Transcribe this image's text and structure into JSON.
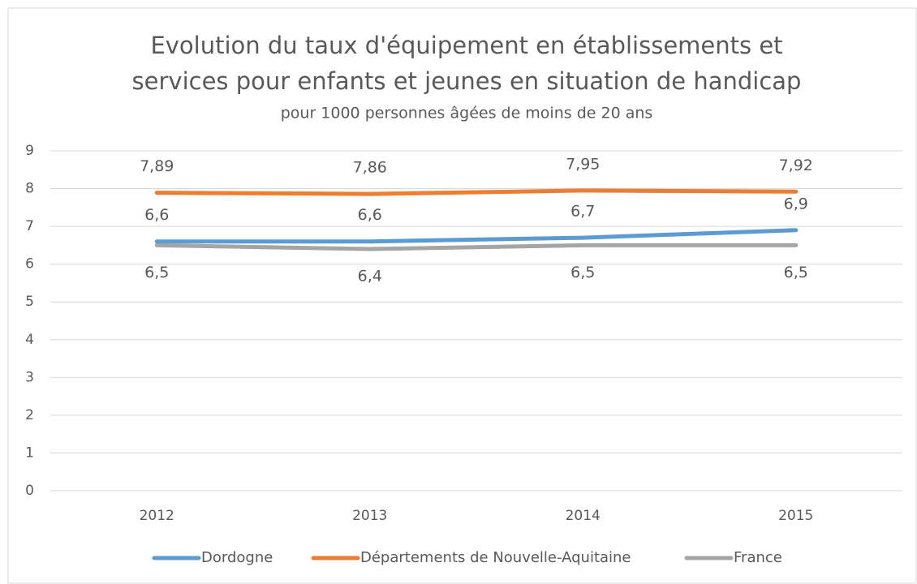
{
  "chart_data": {
    "type": "line",
    "title": [
      "Evolution du taux d'équipement en établissements et",
      "services pour enfants et jeunes en situation de handicap"
    ],
    "subtitle": "pour 1000 personnes âgées de moins de 20 ans",
    "categories": [
      "2012",
      "2013",
      "2014",
      "2015"
    ],
    "series": [
      {
        "name": "Dordogne",
        "color": "#5b9bd5",
        "values": [
          6.6,
          6.6,
          6.7,
          6.9
        ],
        "value_labels": [
          "6,6",
          "6,6",
          "6,7",
          "6,9"
        ]
      },
      {
        "name": "Départements de Nouvelle-Aquitaine",
        "color": "#ed7d31",
        "values": [
          7.89,
          7.86,
          7.95,
          7.92
        ],
        "value_labels": [
          "7,89",
          "7,86",
          "7,95",
          "7,92"
        ]
      },
      {
        "name": "France",
        "color": "#a5a5a5",
        "values": [
          6.5,
          6.4,
          6.5,
          6.5
        ],
        "value_labels": [
          "6,5",
          "6,4",
          "6,5",
          "6,5"
        ]
      }
    ],
    "ylim": [
      0,
      9
    ],
    "yticks": [
      0,
      1,
      2,
      3,
      4,
      5,
      6,
      7,
      8,
      9
    ],
    "grid": true,
    "legend": "bottom"
  }
}
